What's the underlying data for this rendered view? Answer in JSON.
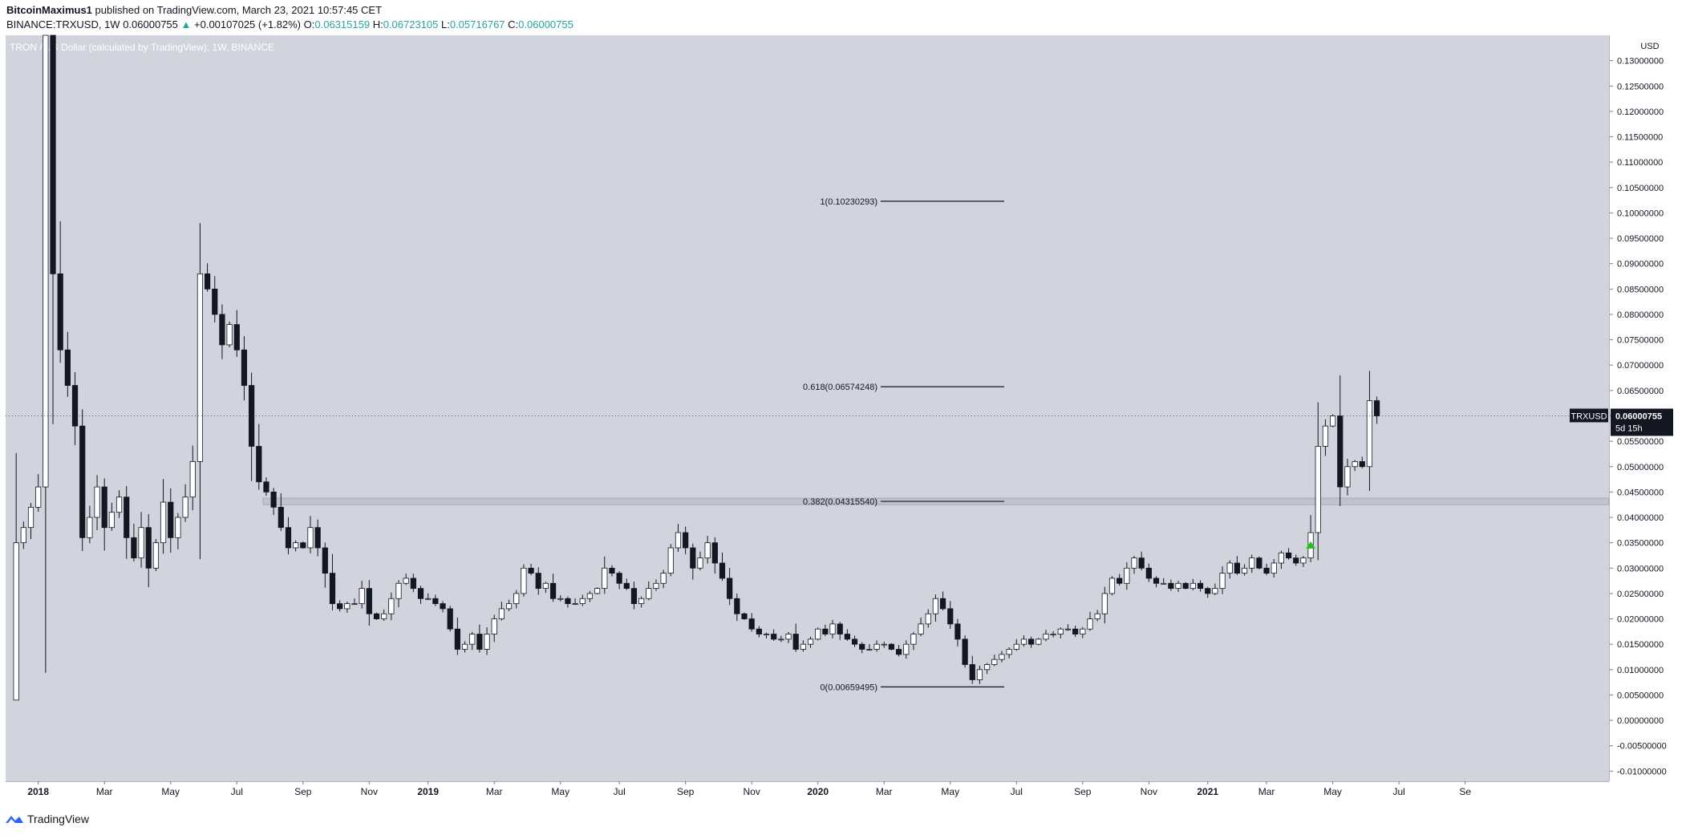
{
  "header": {
    "publisher": "BitcoinMaximus1",
    "published_text": "published on TradingView.com, March 23, 2021 10:57:45 CET",
    "symbol": "BINANCE:TRXUSD, 1W",
    "last": "0.06000755",
    "change_arrow": "▲",
    "change": "+0.00107025 (+1.82%)",
    "o_label": "O:",
    "o_value": "0.06315159",
    "h_label": "H:",
    "h_value": "0.06723105",
    "l_label": "L:",
    "l_value": "0.05716767",
    "c_label": "C:",
    "c_value": "0.06000755"
  },
  "footer": {
    "brand": "TradingView",
    "icon": "tradingview-logo-icon"
  },
  "colors": {
    "pane_bg": "#d1d4dc",
    "up_body": "#ffffff",
    "down_body": "#131722",
    "wick": "#131722",
    "accent_up": "#26a69a",
    "signal": "#22c022",
    "price_label_bg": "#131722"
  },
  "chart_data": {
    "type": "candlestick",
    "title": "TRON / US Dollar (calculated by TradingView), 1W, BINANCE",
    "interval": "1W",
    "currency_label": "USD",
    "ylim": [
      -0.012,
      0.135
    ],
    "y_ticks": [
      "0.13000000",
      "0.12500000",
      "0.12000000",
      "0.11500000",
      "0.11000000",
      "0.10500000",
      "0.10000000",
      "0.09500000",
      "0.09000000",
      "0.08500000",
      "0.08000000",
      "0.07500000",
      "0.07000000",
      "0.06500000",
      "0.06000000",
      "0.05500000",
      "0.05000000",
      "0.04500000",
      "0.04000000",
      "0.03500000",
      "0.03000000",
      "0.02500000",
      "0.02000000",
      "0.01500000",
      "0.01000000",
      "0.00500000",
      "0.00000000",
      "-0.00500000",
      "-0.01000000"
    ],
    "x_labels": [
      {
        "label": "2018",
        "bold": true,
        "week": 4
      },
      {
        "label": "Mar",
        "week": 13
      },
      {
        "label": "May",
        "week": 22
      },
      {
        "label": "Jul",
        "week": 31
      },
      {
        "label": "Sep",
        "week": 40
      },
      {
        "label": "Nov",
        "week": 49
      },
      {
        "label": "2019",
        "bold": true,
        "week": 57
      },
      {
        "label": "Mar",
        "week": 66
      },
      {
        "label": "May",
        "week": 75
      },
      {
        "label": "Jul",
        "week": 83
      },
      {
        "label": "Sep",
        "week": 92
      },
      {
        "label": "Nov",
        "week": 101
      },
      {
        "label": "2020",
        "bold": true,
        "week": 110
      },
      {
        "label": "Mar",
        "week": 119
      },
      {
        "label": "May",
        "week": 128
      },
      {
        "label": "Jul",
        "week": 137
      },
      {
        "label": "Sep",
        "week": 146
      },
      {
        "label": "Nov",
        "week": 155
      },
      {
        "label": "2021",
        "bold": true,
        "week": 163
      },
      {
        "label": "Mar",
        "week": 171
      },
      {
        "label": "May",
        "week": 180
      },
      {
        "label": "Jul",
        "week": 189
      },
      {
        "label": "Se",
        "week": 198
      }
    ],
    "closes": [
      0.004,
      0.035,
      0.038,
      0.042,
      0.046,
      0.145,
      0.088,
      0.073,
      0.066,
      0.058,
      0.036,
      0.04,
      0.046,
      0.038,
      0.041,
      0.044,
      0.036,
      0.032,
      0.038,
      0.03,
      0.035,
      0.043,
      0.036,
      0.04,
      0.044,
      0.051,
      0.088,
      0.085,
      0.08,
      0.074,
      0.078,
      0.073,
      0.066,
      0.054,
      0.047,
      0.045,
      0.042,
      0.038,
      0.034,
      0.035,
      0.034,
      0.038,
      0.034,
      0.029,
      0.023,
      0.022,
      0.023,
      0.023,
      0.026,
      0.021,
      0.02,
      0.021,
      0.024,
      0.027,
      0.028,
      0.026,
      0.024,
      0.024,
      0.023,
      0.022,
      0.018,
      0.014,
      0.015,
      0.017,
      0.014,
      0.017,
      0.02,
      0.022,
      0.023,
      0.025,
      0.03,
      0.029,
      0.026,
      0.027,
      0.024,
      0.024,
      0.023,
      0.023,
      0.024,
      0.025,
      0.026,
      0.03,
      0.029,
      0.027,
      0.026,
      0.023,
      0.024,
      0.026,
      0.027,
      0.029,
      0.034,
      0.037,
      0.034,
      0.03,
      0.032,
      0.035,
      0.031,
      0.028,
      0.024,
      0.021,
      0.02,
      0.018,
      0.017,
      0.017,
      0.016,
      0.016,
      0.017,
      0.014,
      0.015,
      0.016,
      0.018,
      0.017,
      0.019,
      0.017,
      0.016,
      0.015,
      0.014,
      0.014,
      0.015,
      0.015,
      0.014,
      0.013,
      0.015,
      0.017,
      0.019,
      0.021,
      0.024,
      0.022,
      0.019,
      0.016,
      0.011,
      0.008,
      0.01,
      0.011,
      0.012,
      0.013,
      0.014,
      0.015,
      0.016,
      0.015,
      0.016,
      0.017,
      0.017,
      0.018,
      0.018,
      0.017,
      0.018,
      0.02,
      0.021,
      0.025,
      0.028,
      0.027,
      0.03,
      0.032,
      0.03,
      0.028,
      0.027,
      0.027,
      0.026,
      0.027,
      0.026,
      0.027,
      0.026,
      0.025,
      0.026,
      0.029,
      0.031,
      0.029,
      0.03,
      0.032,
      0.03,
      0.029,
      0.031,
      0.033,
      0.032,
      0.031,
      0.032,
      0.037,
      0.054,
      0.058,
      0.06,
      0.046,
      0.05,
      0.051,
      0.05,
      0.063,
      0.06
    ],
    "annotations": {
      "fibonacci": [
        {
          "label": "1(0.10230293)",
          "value": 0.10230293
        },
        {
          "label": "0.618(0.06574248)",
          "value": 0.06574248
        },
        {
          "label": "0.382(0.04315540)",
          "value": 0.0431554
        },
        {
          "label": "0(0.00659495)",
          "value": 0.00659495
        }
      ],
      "horizontal_zone": [
        0.0425,
        0.0438
      ],
      "signal_marker": {
        "shape": "triangle-up",
        "week": 177,
        "value": 0.0345
      },
      "last_price": {
        "symbol": "TRXUSD",
        "value": "0.06000755",
        "countdown": "5d 15h"
      }
    }
  }
}
